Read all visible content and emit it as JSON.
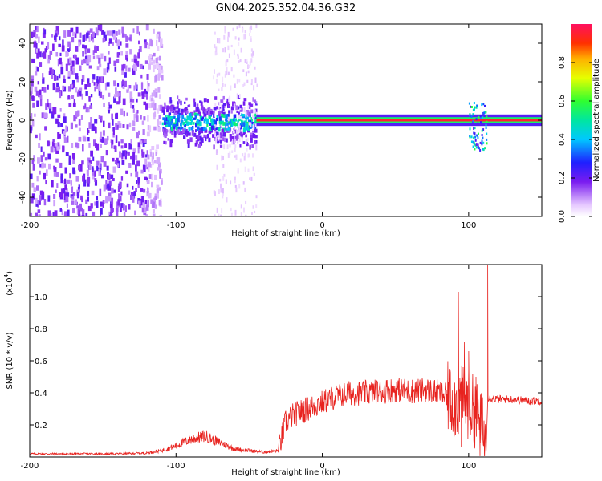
{
  "title": "GN04.2025.352.04.36.G32",
  "chart_data": [
    {
      "type": "heatmap",
      "name": "spectrogram",
      "xlabel": "Height of straight line (km)",
      "ylabel": "Frequency (Hz)",
      "xlim": [
        -200,
        150
      ],
      "ylim": [
        -50,
        50
      ],
      "xticks": [
        -200,
        -100,
        0,
        100
      ],
      "yticks": [
        -40,
        -20,
        0,
        20,
        40
      ],
      "xtick_labels": [
        "-200",
        "-100",
        "0",
        "100"
      ],
      "ytick_labels": [
        "-40",
        "-20",
        "0",
        "20",
        "40"
      ],
      "colorbar": {
        "label": "Normalized spectral amplitude",
        "range": [
          0,
          1
        ],
        "ticks": [
          0.0,
          0.2,
          0.4,
          0.6,
          0.8
        ],
        "tick_labels": [
          "0.0",
          "0.2",
          "0.4",
          "0.6",
          "0.8"
        ]
      },
      "regions": [
        {
          "x": [
            -200,
            -110
          ],
          "freq": [
            -50,
            50
          ],
          "amplitude": 0.12,
          "note": "broadband noise"
        },
        {
          "x": [
            -110,
            -45
          ],
          "freq": [
            -15,
            12
          ],
          "amplitude": 0.3,
          "note": "widening signal band"
        },
        {
          "x": [
            -75,
            -45
          ],
          "freq": [
            -50,
            50
          ],
          "amplitude": 0.05,
          "note": "faint noise column"
        },
        {
          "x": [
            -45,
            150
          ],
          "freq": [
            -1,
            1
          ],
          "amplitude": 0.95,
          "note": "narrow carrier line near 0 Hz"
        },
        {
          "x": [
            100,
            112
          ],
          "freq": [
            -15,
            10
          ],
          "amplitude": 0.5,
          "note": "disturbance near 105 km"
        }
      ]
    },
    {
      "type": "line",
      "name": "snr",
      "xlabel": "Height of straight line (km)",
      "ylabel": "SNR (10 * v/v)",
      "yscale_label": "(x10",
      "yscale_exp": "4",
      "y_multiplier": 10000,
      "xlim": [
        -200,
        150
      ],
      "ylim": [
        0,
        1.2
      ],
      "xticks": [
        -200,
        -100,
        0,
        100
      ],
      "yticks": [
        0.2,
        0.4,
        0.6,
        0.8,
        1.0
      ],
      "xtick_labels": [
        "-200",
        "-100",
        "0",
        "100"
      ],
      "ytick_labels": [
        "0.2",
        "0.4",
        "0.6",
        "0.8",
        "1.0"
      ],
      "series": [
        {
          "name": "SNR",
          "color": "#e8231f",
          "x": [
            -200,
            -180,
            -160,
            -140,
            -120,
            -110,
            -100,
            -90,
            -80,
            -70,
            -60,
            -50,
            -40,
            -30,
            -25,
            -20,
            -10,
            0,
            10,
            20,
            30,
            40,
            50,
            60,
            70,
            80,
            85,
            90,
            95,
            100,
            105,
            110,
            112,
            113,
            120,
            130,
            140,
            150
          ],
          "values": [
            0.02,
            0.02,
            0.02,
            0.02,
            0.025,
            0.04,
            0.07,
            0.11,
            0.13,
            0.09,
            0.05,
            0.04,
            0.03,
            0.04,
            0.22,
            0.26,
            0.3,
            0.34,
            0.38,
            0.4,
            0.4,
            0.41,
            0.42,
            0.41,
            0.42,
            0.4,
            0.38,
            0.33,
            0.35,
            0.33,
            0.27,
            0.15,
            0.06,
            0.37,
            0.36,
            0.36,
            0.35,
            0.35
          ]
        }
      ],
      "spikes": [
        {
          "x": 93,
          "value": 1.03
        },
        {
          "x": 95,
          "value": 0.06
        },
        {
          "x": 97,
          "value": 0.72
        },
        {
          "x": 100,
          "value": 0.66
        },
        {
          "x": 105,
          "value": 0.5
        },
        {
          "x": 108,
          "value": 0.09
        },
        {
          "x": 113,
          "value": 1.2
        }
      ]
    }
  ]
}
